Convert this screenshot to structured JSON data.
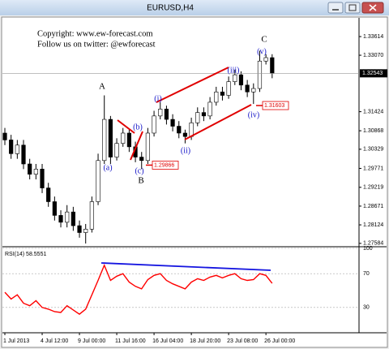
{
  "chart_data": {
    "type": "candlestick",
    "title": "EURUSD,H4",
    "notes": [
      "Copyright: www.ew-forecast.com",
      "Follow us on twitter: @ewforecast"
    ],
    "categories": [
      "1 Jul 2013",
      null,
      null,
      null,
      null,
      null,
      "4 Jul 12:00",
      null,
      null,
      null,
      null,
      null,
      "9 Jul 00:00",
      null,
      null,
      null,
      null,
      null,
      "11 Jul 16:00",
      null,
      null,
      null,
      null,
      null,
      "16 Jul 04:00",
      null,
      null,
      null,
      null,
      null,
      "18 Jul 20:00",
      null,
      null,
      null,
      null,
      null,
      "23 Jul 08:00",
      null,
      null,
      null,
      null,
      null,
      "26 Jul 00:00",
      null
    ],
    "open": [
      1.308,
      1.306,
      1.302,
      1.3045,
      1.299,
      1.296,
      1.2975,
      1.292,
      1.288,
      1.284,
      1.282,
      1.285,
      1.281,
      1.279,
      1.28,
      1.288,
      1.3,
      1.312,
      1.301,
      1.305,
      1.308,
      1.304,
      1.301,
      1.3,
      1.308,
      1.313,
      1.315,
      1.312,
      1.31,
      1.308,
      1.307,
      1.311,
      1.314,
      1.313,
      1.317,
      1.32,
      1.319,
      1.323,
      1.325,
      1.322,
      1.32,
      1.321,
      1.329,
      1.33
    ],
    "high": [
      1.3095,
      1.3075,
      1.306,
      1.306,
      1.3005,
      1.299,
      1.299,
      1.2935,
      1.2895,
      1.2855,
      1.287,
      1.2865,
      1.2825,
      1.2815,
      1.2895,
      1.302,
      1.319,
      1.313,
      1.3065,
      1.3095,
      1.309,
      1.3055,
      1.3025,
      1.3095,
      1.3145,
      1.317,
      1.316,
      1.3135,
      1.3115,
      1.309,
      1.3125,
      1.3155,
      1.3155,
      1.3185,
      1.3215,
      1.3215,
      1.3245,
      1.3265,
      1.326,
      1.3235,
      1.3225,
      1.332,
      1.331,
      1.331
    ],
    "low": [
      1.3045,
      1.3005,
      1.3005,
      1.2975,
      1.2945,
      1.2945,
      1.2905,
      1.2865,
      1.2825,
      1.2805,
      1.2805,
      1.2795,
      1.2775,
      1.2758,
      1.279,
      1.287,
      1.299,
      1.299,
      1.3,
      1.304,
      1.3025,
      1.2995,
      1.2975,
      1.299,
      1.307,
      1.312,
      1.3105,
      1.3085,
      1.3065,
      1.305,
      1.306,
      1.31,
      1.3115,
      1.312,
      1.316,
      1.3175,
      1.318,
      1.322,
      1.3205,
      1.3185,
      1.3165,
      1.32,
      1.328,
      1.324
    ],
    "close": [
      1.306,
      1.302,
      1.3045,
      1.299,
      1.296,
      1.2975,
      1.292,
      1.288,
      1.284,
      1.282,
      1.285,
      1.281,
      1.279,
      1.28,
      1.288,
      1.3,
      1.312,
      1.301,
      1.305,
      1.308,
      1.304,
      1.301,
      1.3,
      1.308,
      1.313,
      1.315,
      1.312,
      1.31,
      1.308,
      1.307,
      1.311,
      1.314,
      1.313,
      1.317,
      1.32,
      1.319,
      1.323,
      1.325,
      1.322,
      1.32,
      1.321,
      1.329,
      1.33,
      1.3254
    ],
    "up_color": "#ffffff",
    "down_color": "#000000",
    "ylim": [
      1.2751,
      1.3416
    ],
    "yticks": [
      1.33614,
      {
        "value": 1.3307,
        "label": "1.33070"
      },
      1.31424,
      1.30868,
      1.30329,
      1.29771,
      1.29219,
      1.28671,
      1.28124,
      1.27584
    ],
    "current_price": 1.32543,
    "price_levels": [
      1.29866,
      1.31603
    ],
    "wave_labels": [
      "A",
      "B",
      "C",
      "(a)",
      "(b)",
      "(c)",
      "(i)",
      "(ii)",
      "(iii)",
      "(iv)",
      "(v)"
    ],
    "rsi": {
      "label": "RSI(14) 58.5551",
      "values": [
        48,
        40,
        45,
        35,
        32,
        38,
        30,
        28,
        25,
        24,
        32,
        27,
        22,
        28,
        45,
        62,
        80,
        62,
        67,
        70,
        60,
        55,
        52,
        63,
        68,
        70,
        62,
        58,
        55,
        52,
        60,
        64,
        62,
        66,
        68,
        65,
        68,
        70,
        64,
        62,
        63,
        70,
        68,
        58.5551
      ],
      "color": "#ff0000",
      "ylim": [
        0,
        100
      ],
      "yticks": [
        100,
        70,
        30
      ]
    }
  }
}
